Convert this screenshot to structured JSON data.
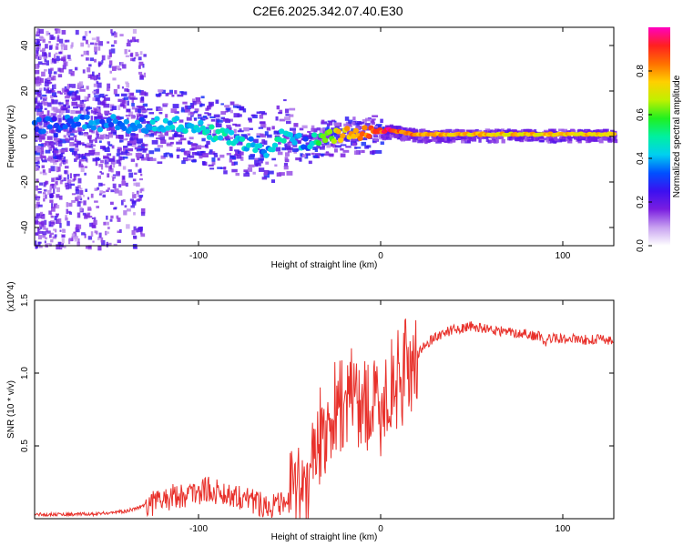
{
  "title": "C2E6.2025.342.07.40.E30",
  "chart_data": [
    {
      "type": "heatmap",
      "title": "C2E6.2025.342.07.40.E30",
      "xlabel": "Height of straight line (km)",
      "ylabel": "Frequency (Hz)",
      "xlim": [
        -190,
        128
      ],
      "ylim": [
        -48,
        48
      ],
      "xticks": [
        -100,
        0,
        100
      ],
      "yticks": [
        -40,
        -20,
        0,
        20,
        40
      ],
      "colorbar": {
        "label": "Normalized spectral amplitude",
        "range": [
          0,
          1
        ],
        "ticks": [
          0.0,
          0.2,
          0.4,
          0.6,
          0.8
        ],
        "colors": [
          "#ffffff",
          "#c8a2f0",
          "#7a1ee0",
          "#3c10f0",
          "#0050ff",
          "#00d0f0",
          "#00f0a0",
          "#20f020",
          "#c0f000",
          "#ffd000",
          "#ff7000",
          "#ff2020",
          "#ff00c0"
        ]
      },
      "ridge": {
        "x": [
          -180,
          -165,
          -150,
          -135,
          -120,
          -110,
          -100,
          -90,
          -80,
          -70,
          -62,
          -55,
          -50,
          -45,
          -40,
          -35,
          -30,
          -25,
          -20,
          -10,
          0,
          5,
          10,
          20,
          40,
          80,
          128
        ],
        "frequency": [
          5,
          6,
          6,
          5,
          5,
          5,
          4,
          1,
          -1,
          -4,
          -6,
          1,
          -1,
          -2,
          -4,
          -1,
          0,
          0,
          1,
          1,
          2,
          3,
          2,
          1,
          1,
          1,
          1
        ],
        "amplitude": [
          0.3,
          0.35,
          0.35,
          0.35,
          0.4,
          0.4,
          0.45,
          0.45,
          0.45,
          0.4,
          0.35,
          0.5,
          0.45,
          0.4,
          0.35,
          0.5,
          0.6,
          0.7,
          0.75,
          0.85,
          0.85,
          0.95,
          0.85,
          0.8,
          0.75,
          0.75,
          0.75
        ]
      }
    },
    {
      "type": "line",
      "xlabel": "Height of straight line (km)",
      "ylabel": "SNR (10 * v/v)",
      "y_multiplier": "(x10^4)",
      "xlim": [
        -190,
        128
      ],
      "ylim": [
        0,
        15000
      ],
      "xticks": [
        -100,
        0,
        100
      ],
      "yticks": [
        5000,
        10000,
        15000
      ],
      "ytick_labels": [
        "0.5",
        "1.0",
        "1.5"
      ],
      "series": [
        {
          "name": "SNR",
          "color": "#e8302a",
          "x": [
            -190,
            -160,
            -140,
            -125,
            -115,
            -105,
            -95,
            -85,
            -75,
            -65,
            -55,
            -45,
            -40,
            -35,
            -30,
            -25,
            -20,
            -15,
            -10,
            -5,
            0,
            5,
            10,
            15,
            20,
            25,
            30,
            40,
            50,
            60,
            70,
            80,
            88,
            90,
            92,
            100,
            110,
            128
          ],
          "y": [
            300,
            300,
            500,
            1100,
            1500,
            1700,
            2000,
            1700,
            1500,
            1000,
            900,
            1600,
            3000,
            5000,
            6500,
            7500,
            8000,
            8500,
            8000,
            7500,
            7500,
            9000,
            9500,
            10500,
            11200,
            12000,
            12500,
            13000,
            13200,
            13000,
            12800,
            12700,
            12500,
            12000,
            12400,
            12400,
            12300,
            12300
          ]
        }
      ]
    }
  ]
}
